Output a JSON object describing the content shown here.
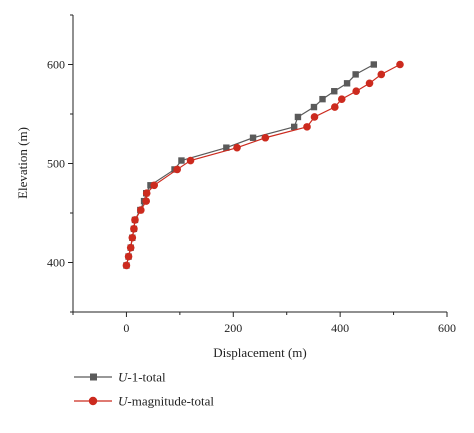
{
  "chart_data": {
    "type": "line",
    "title": "",
    "xlabel": "Displacement (m)",
    "ylabel": "Elevation (m)",
    "xlim": [
      -100,
      600
    ],
    "ylim": [
      350,
      650
    ],
    "xticks": [
      0,
      200,
      400,
      600
    ],
    "yticks": [
      400,
      500,
      600
    ],
    "grid": false,
    "legend_position": "bottom-left, below plot",
    "series": [
      {
        "name": "U-1-total",
        "name_italic": "U",
        "name_rest": "-1-total",
        "color": "#5a5a5a",
        "marker": "square",
        "points": [
          {
            "x": 0,
            "y": 397
          },
          {
            "x": 4,
            "y": 406
          },
          {
            "x": 8,
            "y": 415
          },
          {
            "x": 11,
            "y": 425
          },
          {
            "x": 14,
            "y": 434
          },
          {
            "x": 16,
            "y": 443
          },
          {
            "x": 26,
            "y": 453
          },
          {
            "x": 33,
            "y": 462
          },
          {
            "x": 37,
            "y": 470
          },
          {
            "x": 45,
            "y": 478
          },
          {
            "x": 90,
            "y": 494
          },
          {
            "x": 103,
            "y": 503
          },
          {
            "x": 187,
            "y": 516
          },
          {
            "x": 237,
            "y": 526
          },
          {
            "x": 314,
            "y": 537
          },
          {
            "x": 321,
            "y": 547
          },
          {
            "x": 351,
            "y": 557
          },
          {
            "x": 367,
            "y": 565
          },
          {
            "x": 389,
            "y": 573
          },
          {
            "x": 413,
            "y": 581
          },
          {
            "x": 429,
            "y": 590
          },
          {
            "x": 463,
            "y": 600
          }
        ]
      },
      {
        "name": "U-magnitude-total",
        "name_italic": "U",
        "name_rest": "-magnitude-total",
        "color": "#cc2a1e",
        "marker": "circle",
        "points": [
          {
            "x": 0,
            "y": 397
          },
          {
            "x": 4,
            "y": 406
          },
          {
            "x": 8,
            "y": 415
          },
          {
            "x": 11,
            "y": 425
          },
          {
            "x": 14,
            "y": 434
          },
          {
            "x": 16,
            "y": 443
          },
          {
            "x": 27,
            "y": 453
          },
          {
            "x": 37,
            "y": 462
          },
          {
            "x": 38,
            "y": 470
          },
          {
            "x": 52,
            "y": 478
          },
          {
            "x": 95,
            "y": 494
          },
          {
            "x": 120,
            "y": 503
          },
          {
            "x": 207,
            "y": 516
          },
          {
            "x": 260,
            "y": 526
          },
          {
            "x": 338,
            "y": 537
          },
          {
            "x": 352,
            "y": 547
          },
          {
            "x": 390,
            "y": 557
          },
          {
            "x": 403,
            "y": 565
          },
          {
            "x": 430,
            "y": 573
          },
          {
            "x": 455,
            "y": 581
          },
          {
            "x": 477,
            "y": 590
          },
          {
            "x": 512,
            "y": 600
          }
        ]
      }
    ]
  }
}
